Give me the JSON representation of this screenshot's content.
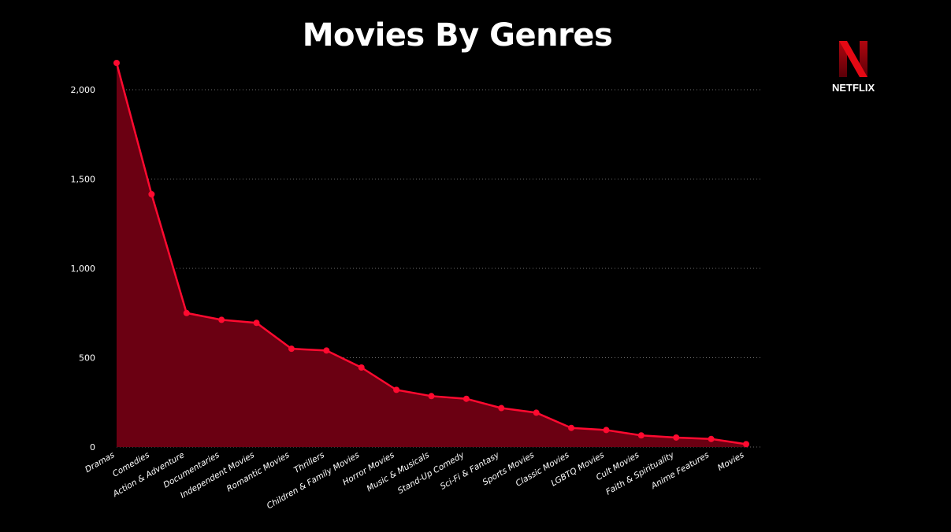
{
  "title": "Movies By Genres",
  "logo": {
    "text": "NETFLIX",
    "icon": "netflix-n-icon"
  },
  "colors": {
    "background": "#000000",
    "line": "#ff0a30",
    "area": "#6b0012",
    "text": "#ffffff",
    "grid": "#6e6e6e"
  },
  "chart_data": {
    "type": "area",
    "categories": [
      "Dramas",
      "Comedies",
      "Action & Adventure",
      "Documentaries",
      "Independent Movies",
      "Romantic Movies",
      "Thrillers",
      "Children & Family Movies",
      "Horror Movies",
      "Music & Musicals",
      "Stand-Up Comedy",
      "Sci-Fi & Fantasy",
      "Sports Movies",
      "Classic Movies",
      "LGBTQ Movies",
      "Cult Movies",
      "Faith & Spirituality",
      "Anime Features",
      "Movies"
    ],
    "values": [
      2150,
      1415,
      750,
      712,
      695,
      550,
      540,
      445,
      320,
      285,
      270,
      218,
      192,
      107,
      95,
      65,
      53,
      45,
      16
    ],
    "ylim": [
      0,
      2150
    ],
    "yticks": [
      0,
      500,
      1000,
      1500,
      2000
    ],
    "ytick_labels": [
      "0",
      "500",
      "1,000",
      "1,500",
      "2,000"
    ],
    "grid": true,
    "legend": "none"
  }
}
